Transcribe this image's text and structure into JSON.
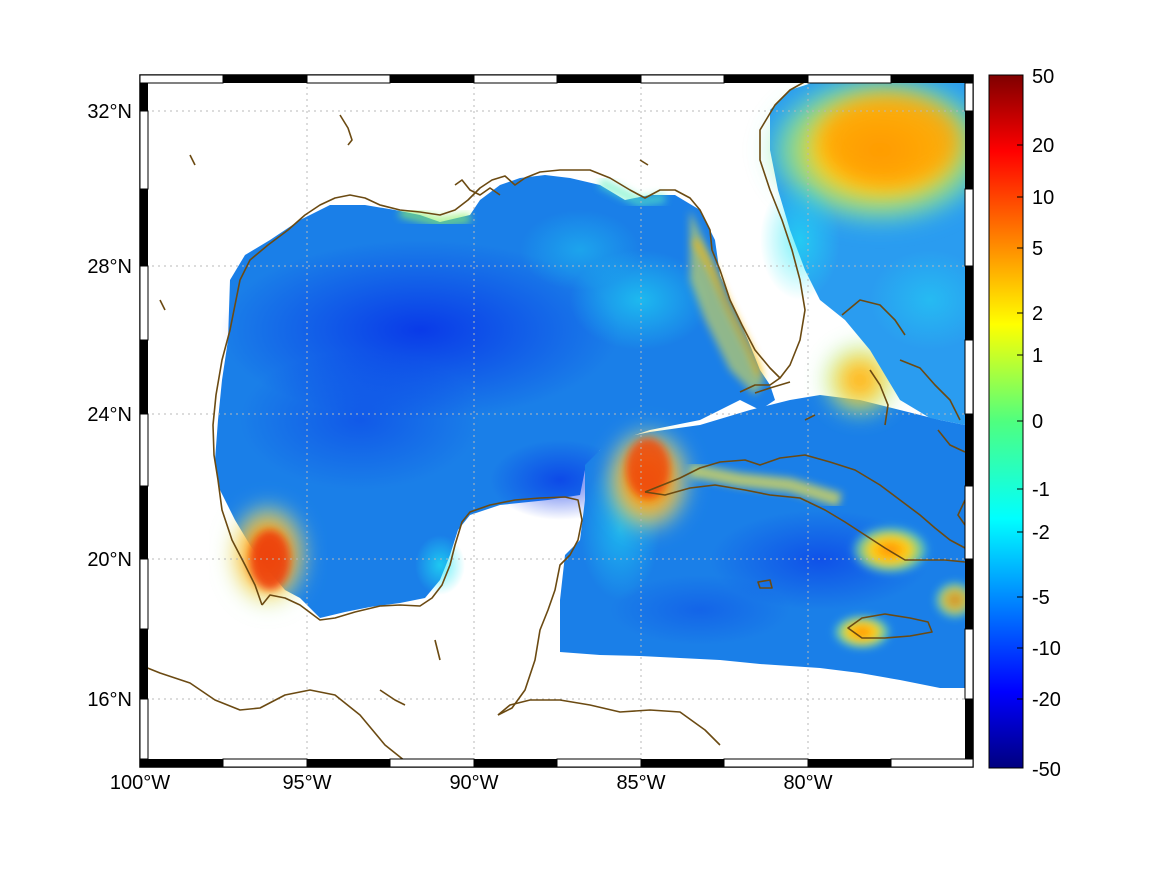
{
  "map": {
    "longitude_labels": [
      "100°W",
      "95°W",
      "90°W",
      "85°W",
      "80°W"
    ],
    "longitude_values": [
      -100,
      -95,
      -90,
      -85,
      -80
    ],
    "latitude_labels": [
      "32°N",
      "28°N",
      "24°N",
      "20°N",
      "16°N"
    ],
    "latitude_values": [
      32,
      28,
      24,
      20,
      16
    ],
    "extent": {
      "lon": [
        -100,
        -75
      ],
      "lat": [
        14.3,
        33
      ]
    },
    "gridlines": true,
    "coastline_color": "#6b4a12",
    "land_color": "#ffffff"
  },
  "colorbar": {
    "tick_labels": [
      "50",
      "20",
      "10",
      "5",
      "2",
      "1",
      "0",
      "-1",
      "-2",
      "-5",
      "-10",
      "-20",
      "-50"
    ],
    "colormap": "jet",
    "range": [
      -50,
      50
    ]
  }
}
